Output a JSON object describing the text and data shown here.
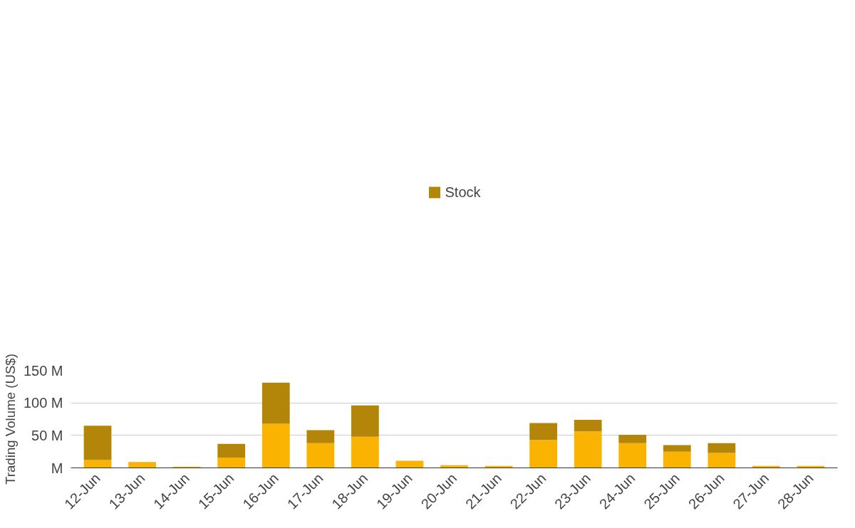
{
  "chart_data": {
    "type": "bar",
    "stacked": true,
    "ylabel": "Trading Volume (US$)",
    "categories": [
      "12-Jun",
      "13-Jun",
      "14-Jun",
      "15-Jun",
      "16-Jun",
      "17-Jun",
      "18-Jun",
      "19-Jun",
      "20-Jun",
      "21-Jun",
      "22-Jun",
      "23-Jun",
      "24-Jun",
      "25-Jun",
      "26-Jun",
      "27-Jun",
      "28-Jun"
    ],
    "series": [
      {
        "color": "#f9b300",
        "values": [
          12,
          9,
          2,
          16,
          68,
          38,
          48,
          11,
          4,
          3,
          43,
          56,
          38,
          25,
          23,
          3,
          3
        ]
      },
      {
        "name": "Stock",
        "color": "#b3860a",
        "values": [
          53,
          0,
          0,
          21,
          63,
          20,
          48,
          0,
          0,
          0,
          26,
          18,
          13,
          10,
          15,
          0,
          0
        ]
      }
    ],
    "ylim": [
      0,
      150
    ],
    "yticks": [
      {
        "value": 0,
        "label": "M"
      },
      {
        "value": 50,
        "label": "50 M"
      },
      {
        "value": 100,
        "label": "100 M"
      },
      {
        "value": 150,
        "label": "150 M"
      }
    ],
    "grid": "y",
    "legend": "top"
  }
}
